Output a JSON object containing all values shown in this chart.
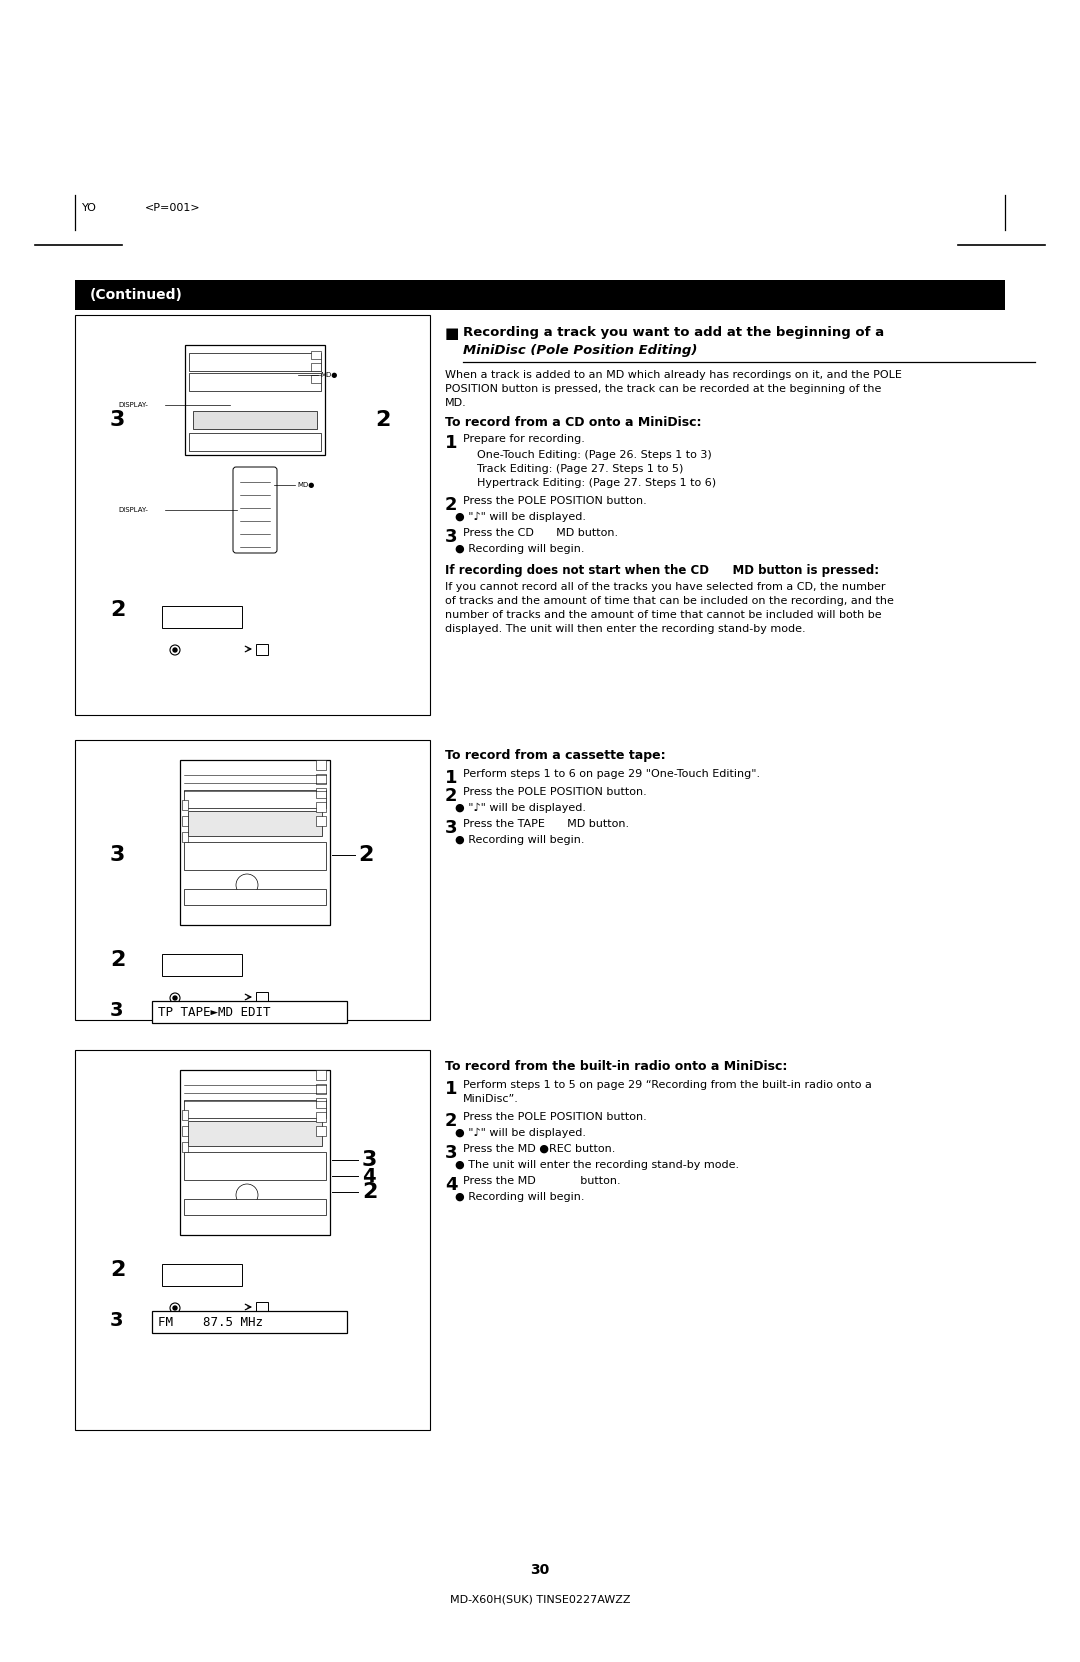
{
  "bg_color": "#ffffff",
  "header_text_left": "YO",
  "header_text_right": "<P=001>",
  "footer_page_num": "30",
  "footer_model": "MD-X60H(SUK) TINSE0227AWZZ",
  "continued_bar_text": "(Continued)",
  "section1_title_line1": "Recording a track you want to add at the beginning of a",
  "section1_title_line2": "MiniDisc (Pole Position Editing)",
  "section1_intro_lines": [
    "When a track is added to an MD which already has recordings on it, and the POLE",
    "POSITION button is pressed, the track can be recorded at the beginning of the",
    "MD."
  ],
  "cd_section_title": "To record from a CD onto a MiniDisc:",
  "step1_main": "Prepare for recording.",
  "step1_indent": [
    "One-Touch Editing: (Page 26. Steps 1 to 3)",
    "Track Editing: (Page 27. Steps 1 to 5)",
    "Hypertrack Editing: (Page 27. Steps 1 to 6)"
  ],
  "step2_main": "Press the POLE POSITION button.",
  "bullet1": "● \"♪\" will be displayed.",
  "step3_main": "Press the CD  MD button.",
  "bullet2": "● Recording will begin.",
  "if_title": "If recording does not start when the CD  MD button is pressed:",
  "if_body_lines": [
    "If you cannot record all of the tracks you have selected from a CD, the number",
    "of tracks and the amount of time that can be included on the recording, and the",
    "number of tracks and the amount of time that cannot be included will both be",
    "displayed. The unit will then enter the recording stand-by mode."
  ],
  "cassette_title": "To record from a cassette tape:",
  "cassette_step1": "Perform steps 1 to 6 on page 29 \"One-Touch Editing\".",
  "cassette_step2": "Press the POLE POSITION button.",
  "cassette_bullet1": "● \"♪\" will be displayed.",
  "cassette_step3": "Press the TAPE  MD button.",
  "cassette_bullet2": "● Recording will begin.",
  "display_text_cassette": "TP TAPE►MD EDIT",
  "radio_title": "To record from the built-in radio onto a MiniDisc:",
  "radio_step1a": "Perform steps 1 to 5 on page 29 “Recording from the built-in radio onto a",
  "radio_step1b": "MiniDisc”.",
  "radio_step2": "Press the POLE POSITION button.",
  "radio_bullet1": "● \"♪\" will be displayed.",
  "radio_step3": "Press the MD ●REC button.",
  "radio_bullet2": "● The unit will enter the recording stand-by mode.",
  "radio_step4": "Press the MD    button.",
  "radio_bullet3": "● Recording will begin.",
  "display_text_radio": "FM    87.5 MHz"
}
